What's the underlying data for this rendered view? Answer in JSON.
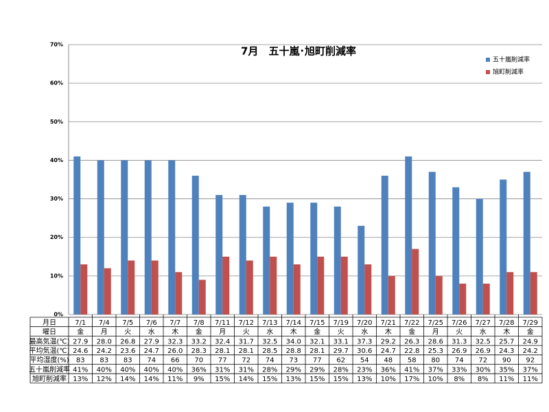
{
  "chart_data": {
    "type": "bar",
    "title": "7月　五十嵐･旭町削減率",
    "categories": [
      "7/1",
      "7/4",
      "7/5",
      "7/6",
      "7/7",
      "7/8",
      "7/11",
      "7/12",
      "7/13",
      "7/14",
      "7/15",
      "7/19",
      "7/20",
      "7/21",
      "7/22",
      "7/25",
      "7/26",
      "7/27",
      "7/28",
      "7/29"
    ],
    "series": [
      {
        "name": "五十嵐削減率",
        "color": "#4f81bd",
        "values": [
          41,
          40,
          40,
          40,
          40,
          36,
          31,
          31,
          28,
          29,
          29,
          28,
          23,
          36,
          41,
          37,
          33,
          30,
          35,
          37
        ],
        "value_labels": [
          "41%",
          "40%",
          "40%",
          "40%",
          "40%",
          "36%",
          "31%",
          "31%",
          "28%",
          "29%",
          "29%",
          "28%",
          "23%",
          "36%",
          "41%",
          "37%",
          "33%",
          "30%",
          "35%",
          "37%"
        ]
      },
      {
        "name": "旭町削減率",
        "color": "#c0504d",
        "values": [
          13,
          12,
          14,
          14,
          11,
          9,
          15,
          14,
          15,
          13,
          15,
          15,
          13,
          10,
          17,
          10,
          8,
          8,
          11,
          11
        ],
        "value_labels": [
          "13%",
          "12%",
          "14%",
          "14%",
          "11%",
          "9%",
          "15%",
          "14%",
          "15%",
          "13%",
          "15%",
          "15%",
          "13%",
          "10%",
          "17%",
          "10%",
          "8%",
          "8%",
          "11%",
          "11%"
        ]
      }
    ],
    "ylim": [
      0,
      70
    ],
    "yticks": [
      {
        "value": 0,
        "label": "0%"
      },
      {
        "value": 10,
        "label": "10%"
      },
      {
        "value": 20,
        "label": "20%"
      },
      {
        "value": 30,
        "label": "30%"
      },
      {
        "value": 40,
        "label": "40%"
      },
      {
        "value": 50,
        "label": "50%"
      },
      {
        "value": 60,
        "label": "60%"
      },
      {
        "value": 70,
        "label": "70%"
      }
    ],
    "grid": true,
    "legend": "top-right",
    "data_table": {
      "headers": [
        "月日",
        "曜日",
        "最高気温(℃)",
        "平均気温(℃)",
        "平均湿度(%)",
        "五十嵐削減率",
        "旭町削減率"
      ],
      "weekdays": [
        "金",
        "月",
        "火",
        "水",
        "木",
        "金",
        "月",
        "火",
        "水",
        "木",
        "金",
        "火",
        "水",
        "木",
        "金",
        "月",
        "火",
        "水",
        "木",
        "金"
      ],
      "max_temp": [
        "27.9",
        "28.0",
        "26.8",
        "27.9",
        "32.3",
        "33.2",
        "32.4",
        "31.7",
        "32.5",
        "34.0",
        "32.1",
        "33.1",
        "37.3",
        "29.2",
        "26.3",
        "28.6",
        "31.3",
        "32.5",
        "25.7",
        "24.9"
      ],
      "avg_temp": [
        "24.6",
        "24.2",
        "23.6",
        "24.7",
        "26.0",
        "28.3",
        "28.1",
        "28.1",
        "28.5",
        "28.8",
        "28.1",
        "29.7",
        "30.6",
        "24.7",
        "22.8",
        "25.3",
        "26.9",
        "26.9",
        "24.3",
        "24.2"
      ],
      "humidity": [
        83,
        83,
        83,
        74,
        66,
        70,
        77,
        72,
        74,
        73,
        77,
        62,
        54,
        48,
        58,
        80,
        74,
        72,
        90,
        92
      ]
    }
  }
}
